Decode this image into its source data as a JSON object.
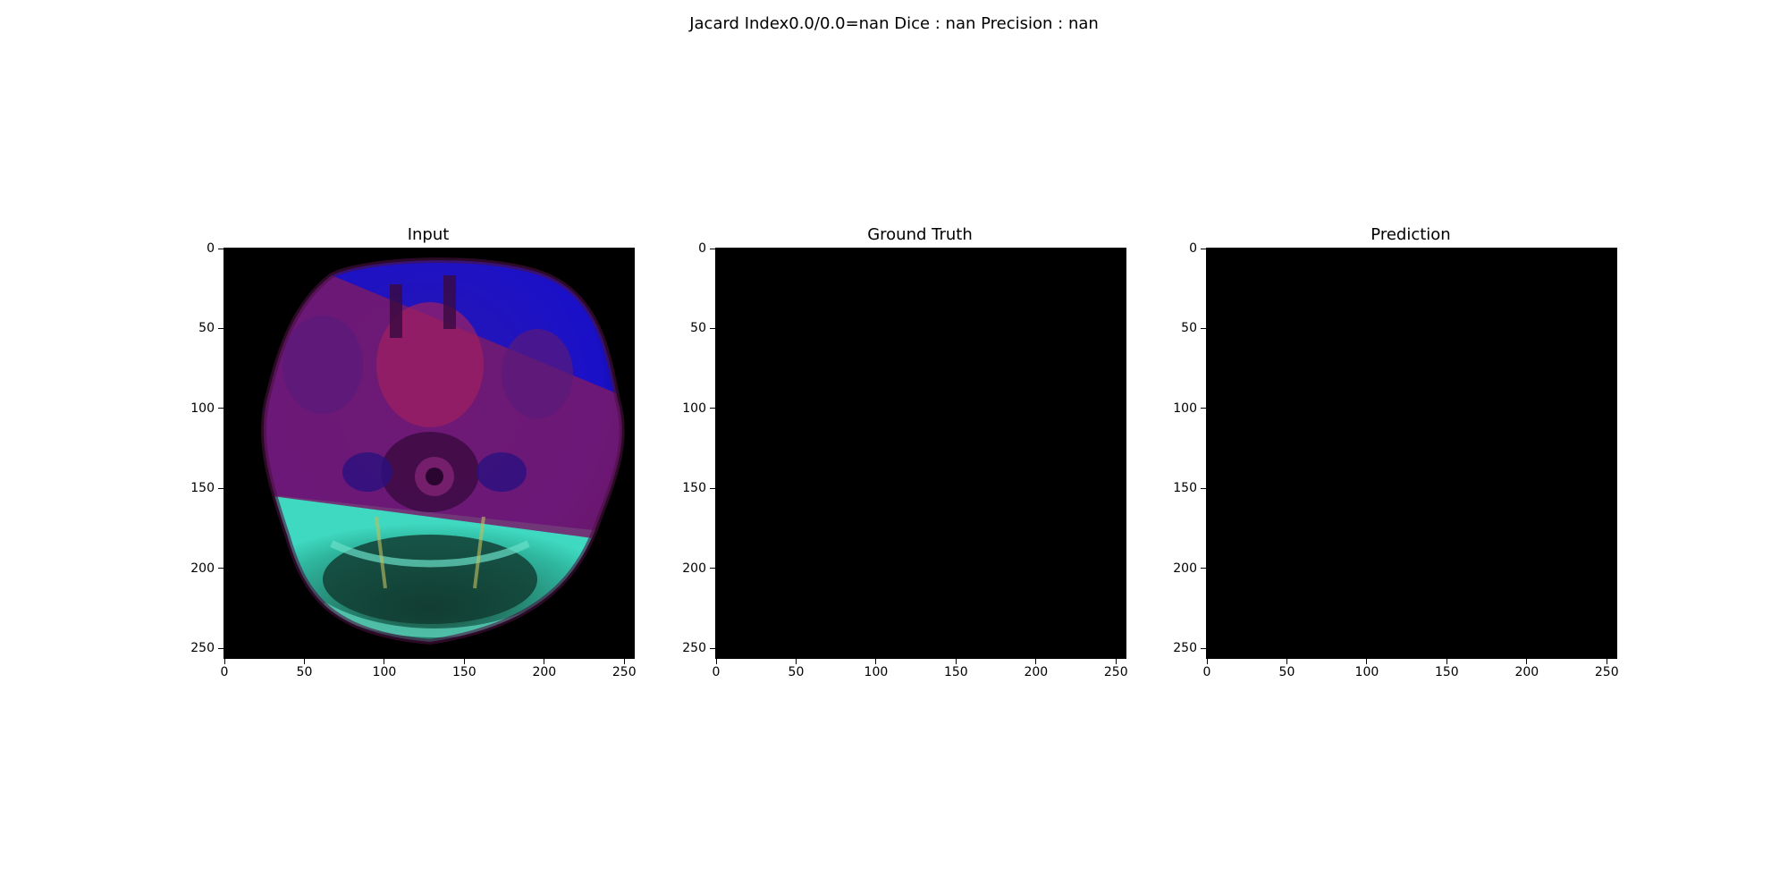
{
  "figure": {
    "suptitle": "Jacard Index0.0/0.0=nan Dice : nan Precision : nan"
  },
  "panels": [
    {
      "key": "input",
      "title": "Input",
      "content": "mri-image"
    },
    {
      "key": "ground_truth",
      "title": "Ground Truth",
      "content": "black"
    },
    {
      "key": "prediction",
      "title": "Prediction",
      "content": "black"
    }
  ],
  "axes": {
    "xlim": [
      0,
      256
    ],
    "ylim": [
      256,
      0
    ],
    "xticks": [
      "0",
      "50",
      "100",
      "150",
      "200",
      "250"
    ],
    "yticks": [
      "0",
      "50",
      "100",
      "150",
      "200",
      "250"
    ],
    "tick_values": [
      0,
      50,
      100,
      150,
      200,
      250
    ]
  },
  "colors": {
    "background": "#000000",
    "overlay_blue": "#1a10c8",
    "overlay_magenta": "#7a1a6a",
    "overlay_cyan": "#2fb7a0"
  }
}
